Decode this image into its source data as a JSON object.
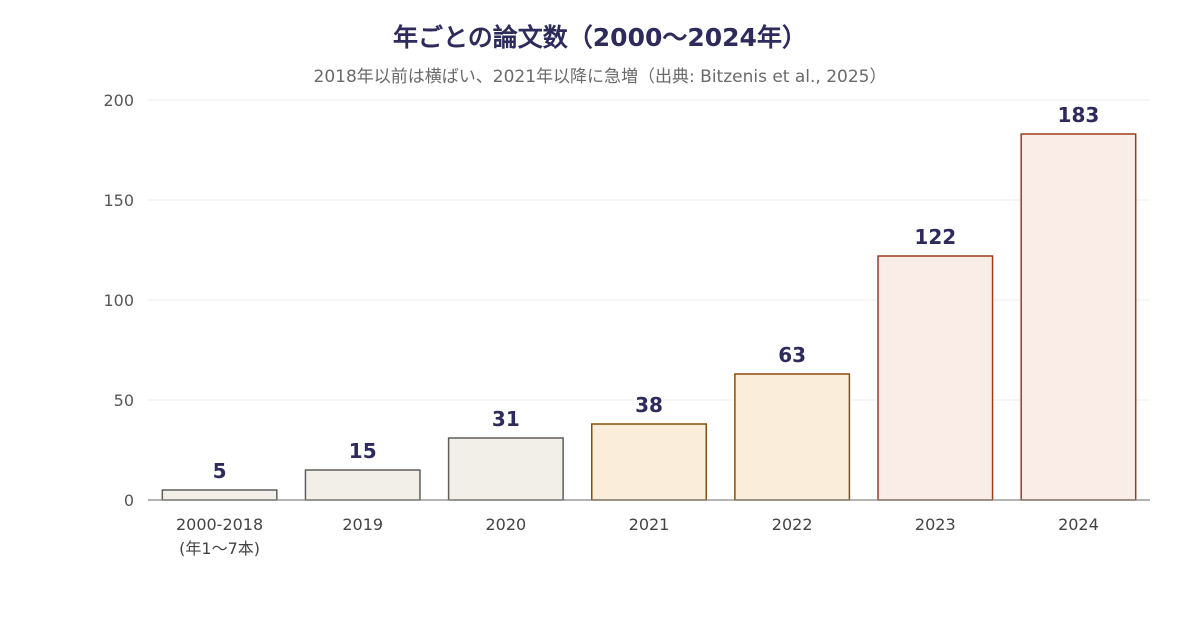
{
  "chart_data": {
    "type": "bar",
    "title": "年ごとの論文数（2000〜2024年）",
    "subtitle": "2018年以前は横ばい、2021年以降に急増（出典: Bitzenis et al., 2025）",
    "categories": [
      "2000-2018\n(年1〜7本)",
      "2019",
      "2020",
      "2021",
      "2022",
      "2023",
      "2024"
    ],
    "values": [
      5,
      15,
      31,
      38,
      63,
      122,
      183
    ],
    "data_labels": [
      "5",
      "15",
      "31",
      "38",
      "63",
      "122",
      "183"
    ],
    "ylim": [
      0,
      200
    ],
    "yticks": [
      0,
      50,
      100,
      150,
      200
    ],
    "grid": true,
    "bar_colors": [
      {
        "fill": "#f1efe8",
        "stroke": "#5f5e5a"
      },
      {
        "fill": "#f1efe8",
        "stroke": "#5f5e5a"
      },
      {
        "fill": "#f1efe8",
        "stroke": "#5f5e5a"
      },
      {
        "fill": "#faeeda",
        "stroke": "#854f0b"
      },
      {
        "fill": "#faeeda",
        "stroke": "#854f0b"
      },
      {
        "fill": "#faece7",
        "stroke": "#993c1d"
      },
      {
        "fill": "#faece7",
        "stroke": "#993c1d"
      }
    ],
    "colors": {
      "title": "#2e2a5c",
      "subtitle": "#6a6a6a",
      "grid": "#eeeeee",
      "axis": "#888888"
    }
  }
}
